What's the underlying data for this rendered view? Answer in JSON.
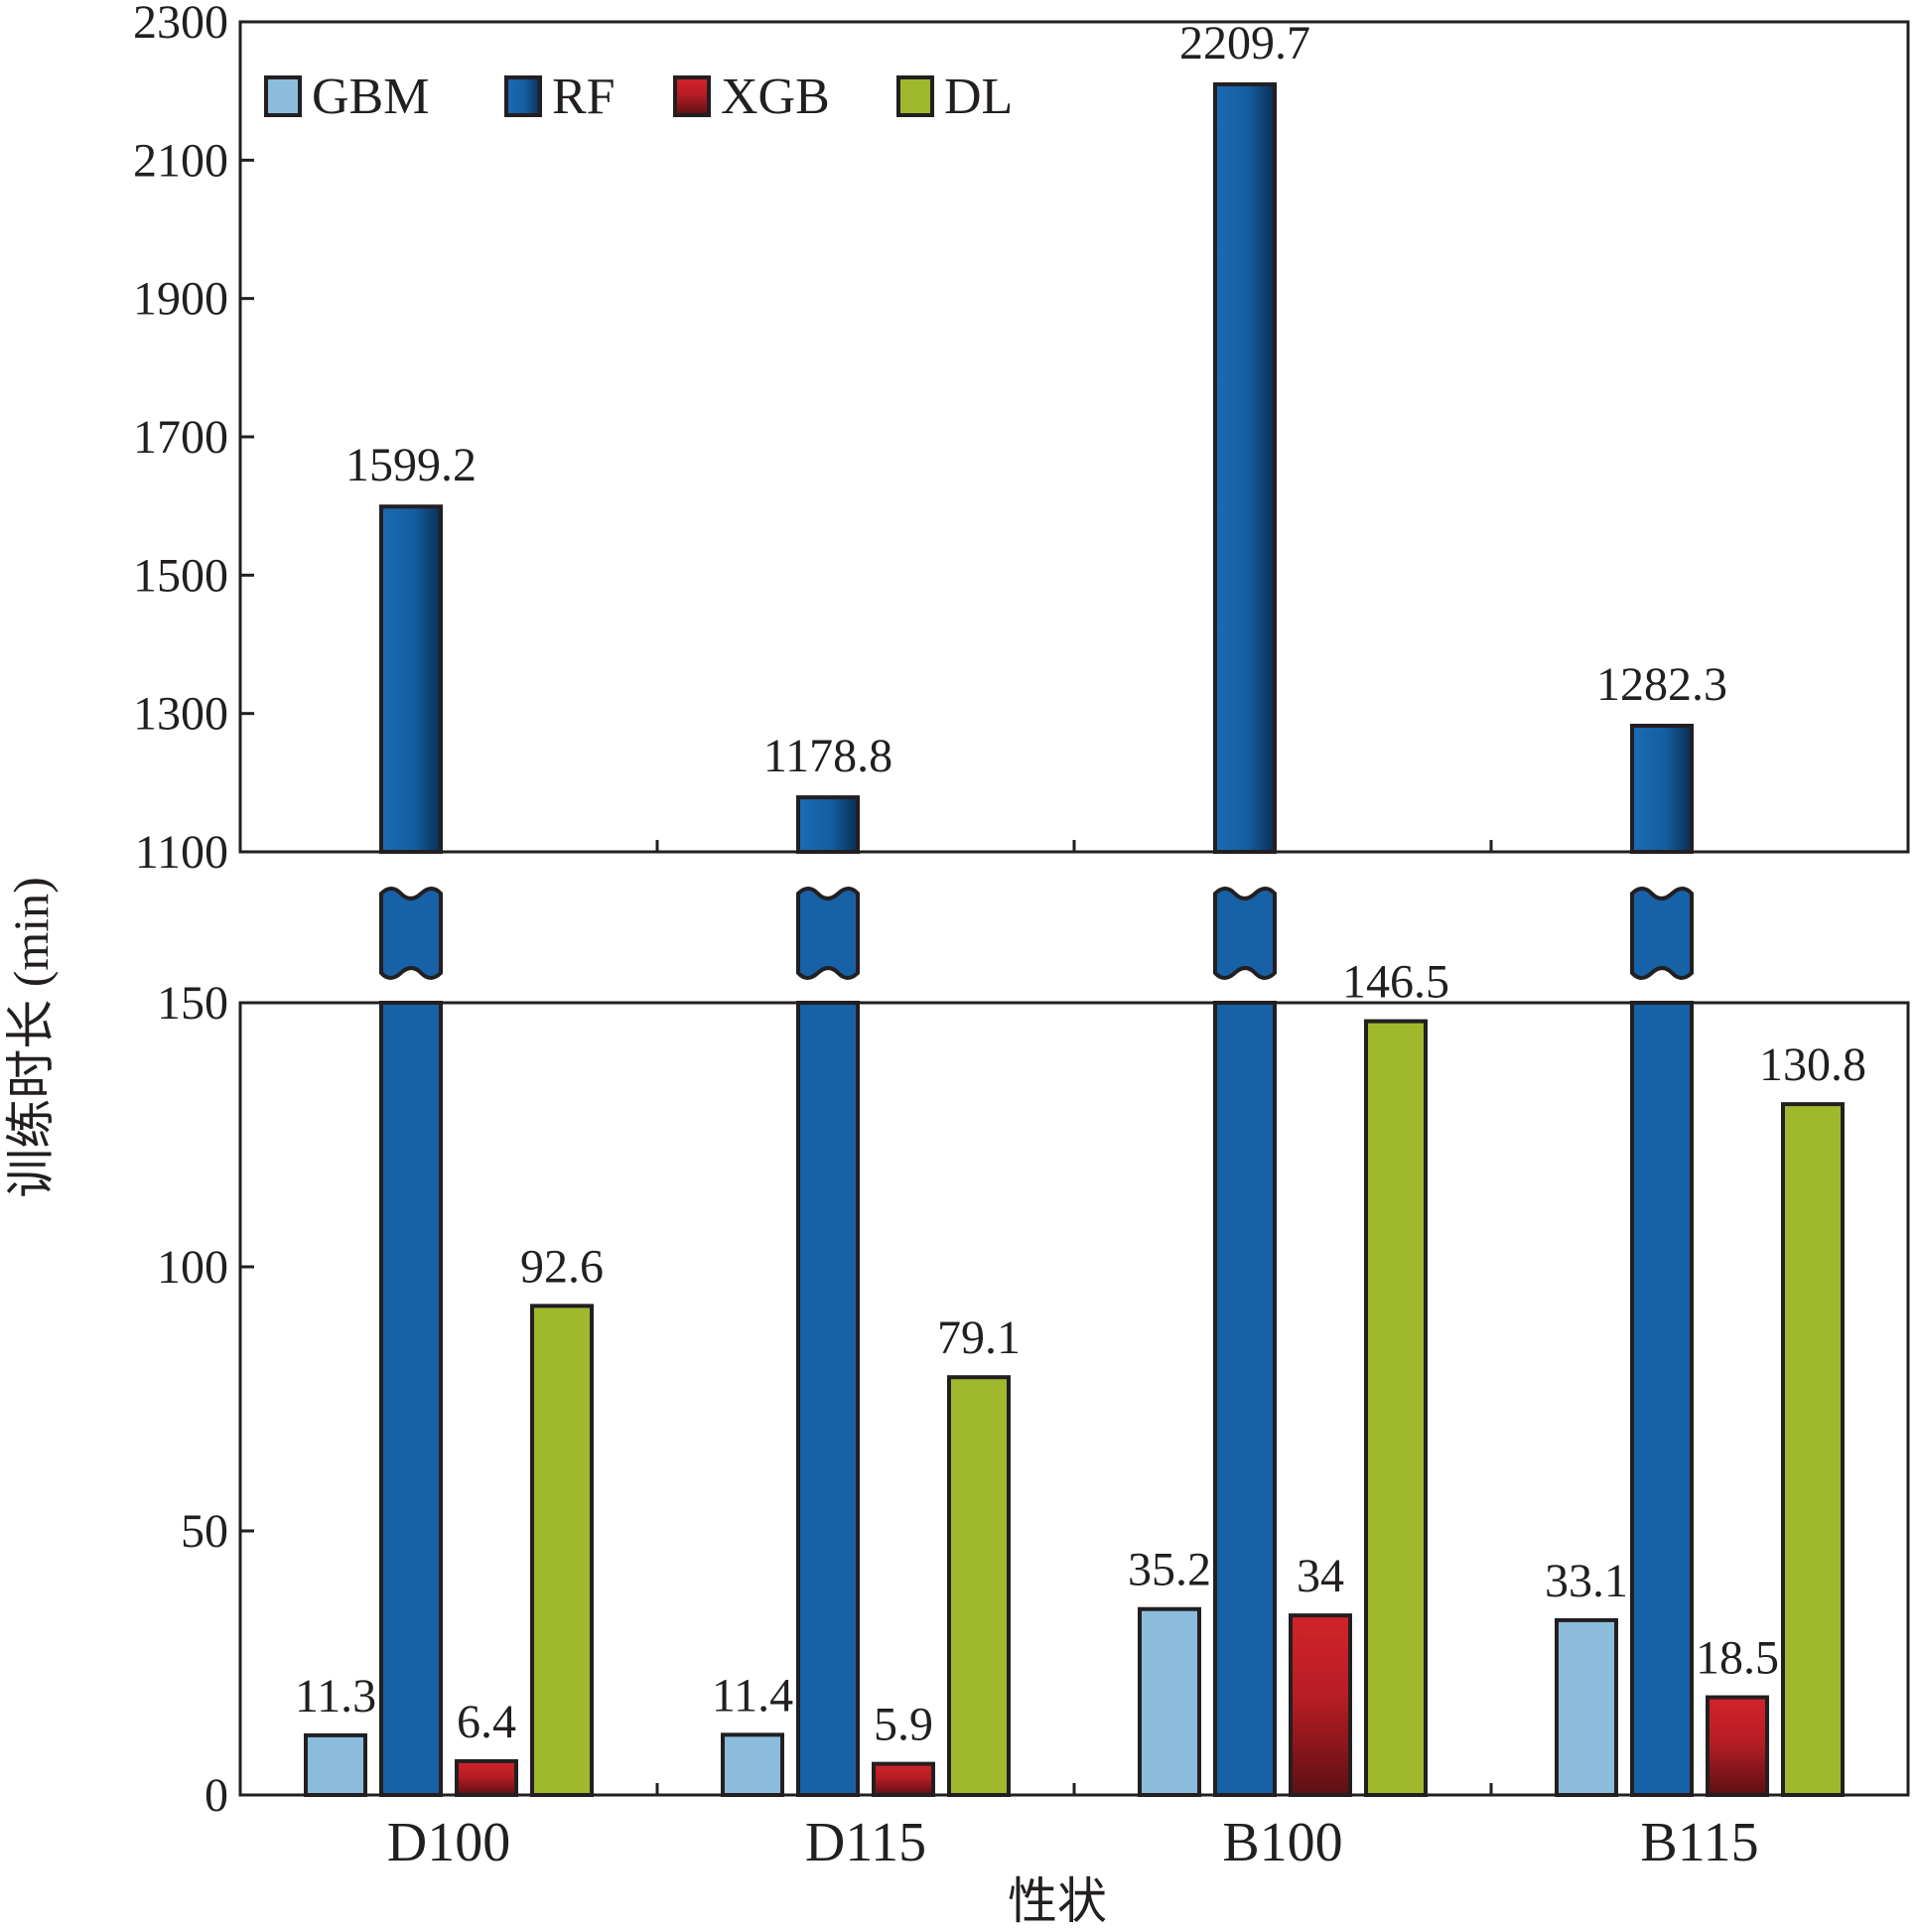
{
  "chart_data": {
    "type": "bar",
    "broken_axis": true,
    "ylabel": "训练时长 (min)",
    "xlabel": "性状",
    "categories": [
      "D100",
      "D115",
      "B100",
      "B115"
    ],
    "legend_position": "top-left",
    "upper_ylim": [
      1100,
      2300
    ],
    "upper_yticks": [
      "1100",
      "1300",
      "1500",
      "1700",
      "1900",
      "2100",
      "2300"
    ],
    "lower_ylim": [
      0,
      150
    ],
    "lower_yticks": [
      "0",
      "50",
      "100",
      "150"
    ],
    "series": [
      {
        "name": "GBM",
        "color": "#8bbcdb",
        "values": [
          11.3,
          11.4,
          35.2,
          33.1
        ],
        "labels": [
          "11.3",
          "11.4",
          "35.2",
          "33.1"
        ]
      },
      {
        "name": "RF",
        "color": "#1761a6",
        "values": [
          1599.2,
          1178.8,
          2209.7,
          1282.3
        ],
        "labels": [
          "1599.2",
          "1178.8",
          "2209.7",
          "1282.3"
        ]
      },
      {
        "name": "XGB",
        "color": "#c81e25",
        "values": [
          6.4,
          5.9,
          34,
          18.5
        ],
        "labels": [
          "6.4",
          "5.9",
          "34",
          "18.5"
        ]
      },
      {
        "name": "DL",
        "color": "#a0b82c",
        "values": [
          92.6,
          79.1,
          146.5,
          130.8
        ],
        "labels": [
          "92.6",
          "79.1",
          "146.5",
          "130.8"
        ]
      }
    ]
  }
}
